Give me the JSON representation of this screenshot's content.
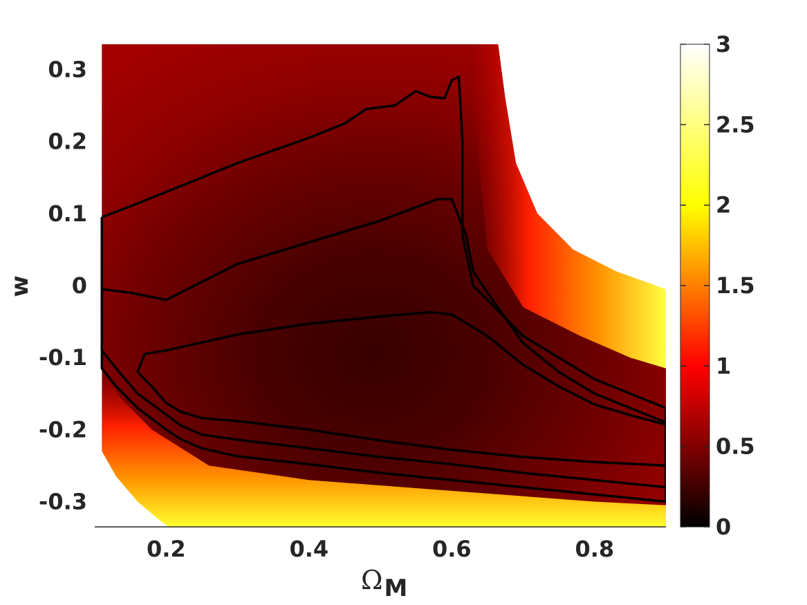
{
  "chart_data": {
    "type": "heatmap",
    "title": "",
    "xlabel_main": "Ω",
    "xlabel_sub": "M",
    "ylabel": "w",
    "xlim": [
      0.1,
      0.9
    ],
    "ylim": [
      -0.335,
      0.335
    ],
    "xticks": [
      0.2,
      0.4,
      0.6,
      0.8
    ],
    "xtick_labels": [
      "0.2",
      "0.4",
      "0.6",
      "0.8"
    ],
    "yticks": [
      0.3,
      0.2,
      0.1,
      0.0,
      -0.1,
      -0.2,
      -0.3
    ],
    "ytick_labels": [
      "0.3",
      "0.2",
      "0.1",
      "0",
      "-0.1",
      "-0.2",
      "-0.3"
    ],
    "colorbar": {
      "colormap": "hot",
      "range": [
        0,
        3
      ],
      "ticks": [
        0,
        0.5,
        1,
        1.5,
        2,
        2.5,
        3
      ],
      "tick_labels": [
        "0",
        "0.5",
        "1",
        "1.5",
        "2",
        "2.5",
        "3"
      ]
    },
    "contours": [
      {
        "level": "inner",
        "points": [
          [
            0.16,
            -0.12
          ],
          [
            0.17,
            -0.095
          ],
          [
            0.2,
            -0.09
          ],
          [
            0.3,
            -0.068
          ],
          [
            0.4,
            -0.053
          ],
          [
            0.5,
            -0.043
          ],
          [
            0.57,
            -0.037
          ],
          [
            0.6,
            -0.04
          ],
          [
            0.65,
            -0.07
          ],
          [
            0.7,
            -0.11
          ],
          [
            0.75,
            -0.14
          ],
          [
            0.8,
            -0.165
          ],
          [
            0.85,
            -0.18
          ],
          [
            0.9,
            -0.193
          ],
          [
            0.9,
            -0.25
          ],
          [
            0.8,
            -0.245
          ],
          [
            0.7,
            -0.238
          ],
          [
            0.6,
            -0.228
          ],
          [
            0.5,
            -0.215
          ],
          [
            0.4,
            -0.2
          ],
          [
            0.3,
            -0.188
          ],
          [
            0.25,
            -0.184
          ],
          [
            0.22,
            -0.175
          ],
          [
            0.2,
            -0.163
          ],
          [
            0.18,
            -0.14
          ],
          [
            0.16,
            -0.12
          ]
        ]
      },
      {
        "level": "middle",
        "points": [
          [
            0.11,
            0.09
          ],
          [
            0.11,
            -0.005
          ],
          [
            0.15,
            -0.01
          ],
          [
            0.2,
            -0.02
          ],
          [
            0.3,
            0.03
          ],
          [
            0.4,
            0.06
          ],
          [
            0.5,
            0.09
          ],
          [
            0.58,
            0.12
          ],
          [
            0.6,
            0.12
          ],
          [
            0.62,
            0.07
          ],
          [
            0.63,
            0.02
          ],
          [
            0.65,
            -0.01
          ],
          [
            0.7,
            -0.08
          ],
          [
            0.75,
            -0.12
          ],
          [
            0.8,
            -0.15
          ],
          [
            0.85,
            -0.17
          ],
          [
            0.9,
            -0.19
          ],
          [
            0.9,
            -0.28
          ],
          [
            0.8,
            -0.27
          ],
          [
            0.7,
            -0.26
          ],
          [
            0.6,
            -0.248
          ],
          [
            0.5,
            -0.238
          ],
          [
            0.4,
            -0.226
          ],
          [
            0.3,
            -0.214
          ],
          [
            0.25,
            -0.207
          ],
          [
            0.22,
            -0.194
          ],
          [
            0.2,
            -0.179
          ],
          [
            0.16,
            -0.15
          ],
          [
            0.13,
            -0.115
          ],
          [
            0.11,
            -0.09
          ],
          [
            0.11,
            0.09
          ]
        ]
      },
      {
        "level": "outer",
        "points": [
          [
            0.11,
            0.095
          ],
          [
            0.15,
            0.11
          ],
          [
            0.2,
            0.13
          ],
          [
            0.3,
            0.17
          ],
          [
            0.4,
            0.205
          ],
          [
            0.45,
            0.225
          ],
          [
            0.48,
            0.245
          ],
          [
            0.52,
            0.25
          ],
          [
            0.55,
            0.27
          ],
          [
            0.57,
            0.262
          ],
          [
            0.59,
            0.26
          ],
          [
            0.6,
            0.285
          ],
          [
            0.61,
            0.29
          ],
          [
            0.615,
            0.2
          ],
          [
            0.615,
            0.07
          ],
          [
            0.63,
            0.0
          ],
          [
            0.66,
            -0.03
          ],
          [
            0.7,
            -0.07
          ],
          [
            0.75,
            -0.1
          ],
          [
            0.8,
            -0.13
          ],
          [
            0.85,
            -0.15
          ],
          [
            0.9,
            -0.17
          ],
          [
            0.9,
            -0.3
          ],
          [
            0.8,
            -0.29
          ],
          [
            0.7,
            -0.28
          ],
          [
            0.6,
            -0.27
          ],
          [
            0.5,
            -0.26
          ],
          [
            0.4,
            -0.248
          ],
          [
            0.3,
            -0.237
          ],
          [
            0.25,
            -0.226
          ],
          [
            0.22,
            -0.213
          ],
          [
            0.2,
            -0.2
          ],
          [
            0.16,
            -0.17
          ],
          [
            0.13,
            -0.14
          ],
          [
            0.11,
            -0.115
          ],
          [
            0.11,
            0.095
          ]
        ]
      }
    ]
  }
}
